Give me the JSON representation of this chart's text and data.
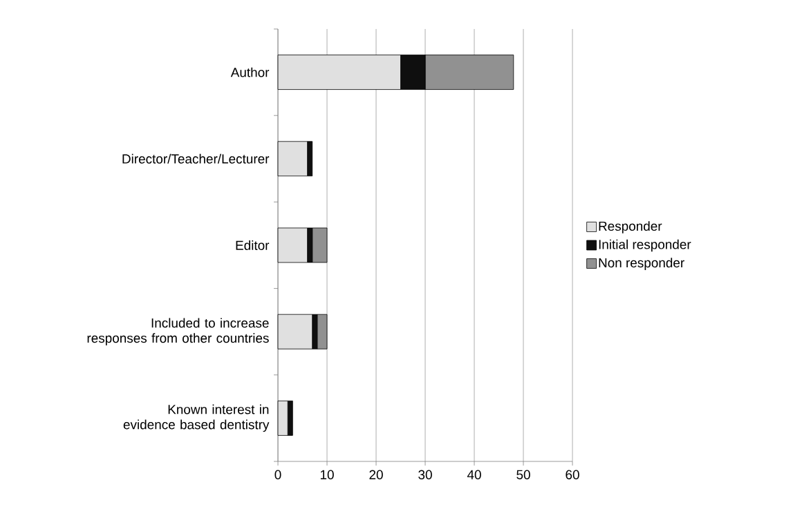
{
  "chart_data": {
    "type": "bar",
    "orientation": "horizontal",
    "stacked": true,
    "categories": [
      "Author",
      "Director/Teacher/Lecturer",
      "Editor",
      "Included to increase responses from other countries",
      "Known interest in evidence based dentistry"
    ],
    "series": [
      {
        "name": "Responder",
        "color": "#e0e0e0",
        "values": [
          25,
          6,
          6,
          7,
          2
        ]
      },
      {
        "name": "Initial responder",
        "color": "#0f0f0f",
        "values": [
          5,
          1,
          1,
          1,
          1
        ]
      },
      {
        "name": "Non responder",
        "color": "#919191",
        "values": [
          18,
          0,
          3,
          2,
          0
        ]
      }
    ],
    "xlim": [
      0,
      60
    ],
    "xticks": [
      0,
      10,
      20,
      30,
      40,
      50,
      60
    ],
    "grid": "x",
    "legend": "right"
  }
}
